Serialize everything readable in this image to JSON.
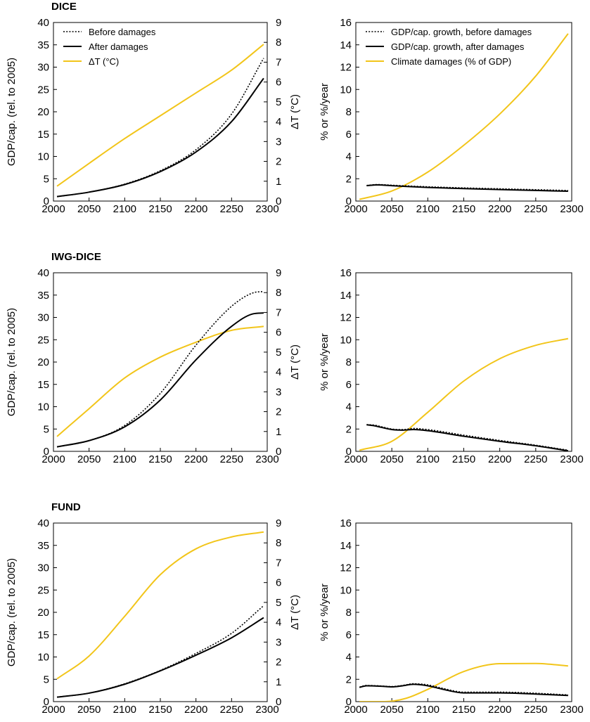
{
  "colors": {
    "temperature": "#F2C51A",
    "gdp": "#000000"
  },
  "chart_data": [
    {
      "type": "line",
      "panel": "left",
      "title": "DICE",
      "xlabel": "",
      "ylabel": "GDP/cap. (rel. to 2005)",
      "y2label": "ΔT (°C)",
      "xlim": [
        2000,
        2300
      ],
      "ylim": [
        0,
        40
      ],
      "y2lim": [
        0,
        9
      ],
      "xticks": [
        "2000",
        "2050",
        "2100",
        "2150",
        "2200",
        "2250",
        "2300"
      ],
      "yticks": [
        "0",
        "5",
        "10",
        "15",
        "20",
        "25",
        "30",
        "35",
        "40"
      ],
      "y2ticks": [
        "0",
        "1",
        "2",
        "3",
        "4",
        "5",
        "6",
        "7",
        "8",
        "9"
      ],
      "legend_position": "top-left",
      "series": [
        {
          "name": "Before damages",
          "axis": "left",
          "style": "dotted",
          "x": [
            2005,
            2050,
            2100,
            2150,
            2200,
            2250,
            2295
          ],
          "y": [
            1.0,
            2.0,
            3.8,
            6.8,
            11.5,
            19.5,
            32.0
          ]
        },
        {
          "name": "After damages",
          "axis": "left",
          "style": "solid",
          "x": [
            2005,
            2050,
            2100,
            2150,
            2200,
            2250,
            2295
          ],
          "y": [
            1.0,
            2.0,
            3.7,
            6.6,
            11.0,
            17.8,
            27.5
          ]
        },
        {
          "name": "ΔT (°C)",
          "axis": "right",
          "style": "yellow",
          "x": [
            2005,
            2050,
            2100,
            2150,
            2200,
            2250,
            2295
          ],
          "y": [
            0.75,
            1.9,
            3.15,
            4.3,
            5.45,
            6.6,
            7.9
          ]
        }
      ]
    },
    {
      "type": "line",
      "panel": "right",
      "title": "",
      "xlabel": "",
      "ylabel": "% or %/year",
      "xlim": [
        2000,
        2300
      ],
      "ylim": [
        0,
        16
      ],
      "xticks": [
        "2000",
        "2050",
        "2100",
        "2150",
        "2200",
        "2250",
        "2300"
      ],
      "yticks": [
        "0",
        "2",
        "4",
        "6",
        "8",
        "10",
        "12",
        "14",
        "16"
      ],
      "legend_position": "top-left",
      "series": [
        {
          "name": "GDP/cap. growth, before damages",
          "axis": "left",
          "style": "dotted",
          "x": [
            2015,
            2030,
            2050,
            2100,
            2150,
            2200,
            2250,
            2295
          ],
          "y": [
            1.4,
            1.48,
            1.42,
            1.28,
            1.18,
            1.1,
            1.02,
            0.95
          ]
        },
        {
          "name": "GDP/cap. growth, after damages",
          "axis": "left",
          "style": "solid",
          "x": [
            2015,
            2030,
            2050,
            2100,
            2150,
            2200,
            2250,
            2295
          ],
          "y": [
            1.38,
            1.45,
            1.38,
            1.22,
            1.12,
            1.03,
            0.95,
            0.88
          ]
        },
        {
          "name": "Climate damages (% of GDP)",
          "axis": "left",
          "style": "yellow",
          "x": [
            2005,
            2050,
            2100,
            2150,
            2200,
            2250,
            2295
          ],
          "y": [
            0.15,
            0.9,
            2.6,
            5.0,
            7.8,
            11.2,
            15.0
          ]
        }
      ]
    },
    {
      "type": "line",
      "panel": "left",
      "title": "IWG-DICE",
      "xlabel": "",
      "ylabel": "GDP/cap. (rel. to 2005)",
      "y2label": "ΔT (°C)",
      "xlim": [
        2000,
        2300
      ],
      "ylim": [
        0,
        40
      ],
      "y2lim": [
        0,
        9
      ],
      "xticks": [
        "2000",
        "2050",
        "2100",
        "2150",
        "2200",
        "2250",
        "2300"
      ],
      "yticks": [
        "0",
        "5",
        "10",
        "15",
        "20",
        "25",
        "30",
        "35",
        "40"
      ],
      "y2ticks": [
        "0",
        "1",
        "2",
        "3",
        "4",
        "5",
        "6",
        "7",
        "8",
        "9"
      ],
      "series": [
        {
          "name": "Before damages",
          "axis": "left",
          "style": "dotted",
          "x": [
            2005,
            2050,
            2100,
            2150,
            2200,
            2250,
            2280,
            2295
          ],
          "y": [
            1.0,
            2.4,
            5.8,
            13.0,
            23.8,
            32.5,
            35.5,
            35.8
          ]
        },
        {
          "name": "After damages",
          "axis": "left",
          "style": "solid",
          "x": [
            2005,
            2050,
            2100,
            2150,
            2200,
            2250,
            2280,
            2295
          ],
          "y": [
            1.0,
            2.4,
            5.5,
            11.5,
            20.5,
            28.0,
            30.8,
            31.0
          ]
        },
        {
          "name": "ΔT (°C)",
          "axis": "right",
          "style": "yellow",
          "x": [
            2005,
            2050,
            2100,
            2150,
            2200,
            2250,
            2295
          ],
          "y": [
            0.75,
            2.15,
            3.7,
            4.75,
            5.5,
            6.1,
            6.3
          ]
        }
      ]
    },
    {
      "type": "line",
      "panel": "right",
      "title": "",
      "xlabel": "",
      "ylabel": "% or %/year",
      "xlim": [
        2000,
        2300
      ],
      "ylim": [
        0,
        16
      ],
      "xticks": [
        "2000",
        "2050",
        "2100",
        "2150",
        "2200",
        "2250",
        "2300"
      ],
      "yticks": [
        "0",
        "2",
        "4",
        "6",
        "8",
        "10",
        "12",
        "14",
        "16"
      ],
      "series": [
        {
          "name": "GDP/cap. growth, before damages",
          "axis": "left",
          "style": "dotted",
          "x": [
            2015,
            2025,
            2050,
            2065,
            2080,
            2100,
            2150,
            2200,
            2250,
            2295
          ],
          "y": [
            2.4,
            2.35,
            2.0,
            1.95,
            2.05,
            1.95,
            1.45,
            0.98,
            0.55,
            0.1
          ]
        },
        {
          "name": "GDP/cap. growth, after damages",
          "axis": "left",
          "style": "solid",
          "x": [
            2015,
            2025,
            2050,
            2065,
            2080,
            2100,
            2150,
            2200,
            2250,
            2295
          ],
          "y": [
            2.38,
            2.3,
            1.95,
            1.9,
            1.95,
            1.85,
            1.35,
            0.9,
            0.5,
            0.05
          ]
        },
        {
          "name": "Climate damages (% of GDP)",
          "axis": "left",
          "style": "yellow",
          "x": [
            2005,
            2050,
            2100,
            2150,
            2200,
            2250,
            2295
          ],
          "y": [
            0.1,
            0.9,
            3.5,
            6.3,
            8.3,
            9.5,
            10.1
          ]
        }
      ]
    },
    {
      "type": "line",
      "panel": "left",
      "title": "FUND",
      "xlabel": "",
      "ylabel": "GDP/cap. (rel. to 2005)",
      "y2label": "ΔT (°C)",
      "xlim": [
        2000,
        2300
      ],
      "ylim": [
        0,
        40
      ],
      "y2lim": [
        0,
        9
      ],
      "xticks": [
        "2000",
        "2050",
        "2100",
        "2150",
        "2200",
        "2250",
        "2300"
      ],
      "yticks": [
        "0",
        "5",
        "10",
        "15",
        "20",
        "25",
        "30",
        "35",
        "40"
      ],
      "y2ticks": [
        "0",
        "1",
        "2",
        "3",
        "4",
        "5",
        "6",
        "7",
        "8",
        "9"
      ],
      "series": [
        {
          "name": "Before damages",
          "axis": "left",
          "style": "dotted",
          "x": [
            2005,
            2050,
            2100,
            2150,
            2200,
            2250,
            2295
          ],
          "y": [
            1.0,
            1.9,
            4.0,
            7.0,
            10.8,
            15.3,
            21.5
          ]
        },
        {
          "name": "After damages",
          "axis": "left",
          "style": "solid",
          "x": [
            2005,
            2050,
            2100,
            2150,
            2200,
            2250,
            2295
          ],
          "y": [
            1.0,
            1.9,
            3.9,
            6.9,
            10.4,
            14.3,
            18.8
          ]
        },
        {
          "name": "ΔT (°C)",
          "axis": "right",
          "style": "yellow",
          "x": [
            2005,
            2050,
            2100,
            2150,
            2200,
            2250,
            2295
          ],
          "y": [
            1.15,
            2.3,
            4.3,
            6.4,
            7.7,
            8.3,
            8.55
          ]
        }
      ]
    },
    {
      "type": "line",
      "panel": "right",
      "title": "",
      "xlabel": "",
      "ylabel": "% or %/year",
      "xlim": [
        2000,
        2300
      ],
      "ylim": [
        0,
        16
      ],
      "xticks": [
        "2000",
        "2050",
        "2100",
        "2150",
        "2200",
        "2250",
        "2300"
      ],
      "yticks": [
        "0",
        "2",
        "4",
        "6",
        "8",
        "10",
        "12",
        "14",
        "16"
      ],
      "series": [
        {
          "name": "GDP/cap. growth, before damages",
          "axis": "left",
          "style": "dotted",
          "x": [
            2005,
            2015,
            2035,
            2050,
            2065,
            2080,
            2100,
            2120,
            2150,
            2200,
            2250,
            2295
          ],
          "y": [
            1.3,
            1.45,
            1.4,
            1.35,
            1.45,
            1.6,
            1.5,
            1.2,
            0.85,
            0.85,
            0.75,
            0.6
          ]
        },
        {
          "name": "GDP/cap. growth, after damages",
          "axis": "left",
          "style": "solid",
          "x": [
            2005,
            2015,
            2035,
            2050,
            2065,
            2080,
            2100,
            2120,
            2150,
            2200,
            2250,
            2295
          ],
          "y": [
            1.28,
            1.42,
            1.38,
            1.32,
            1.42,
            1.55,
            1.42,
            1.12,
            0.78,
            0.78,
            0.68,
            0.55
          ]
        },
        {
          "name": "Climate damages (% of GDP)",
          "axis": "left",
          "style": "yellow",
          "x": [
            2005,
            2040,
            2070,
            2100,
            2150,
            2200,
            2250,
            2295
          ],
          "y": [
            0.0,
            0.0,
            0.3,
            1.1,
            2.7,
            3.4,
            3.42,
            3.2
          ]
        }
      ]
    }
  ]
}
